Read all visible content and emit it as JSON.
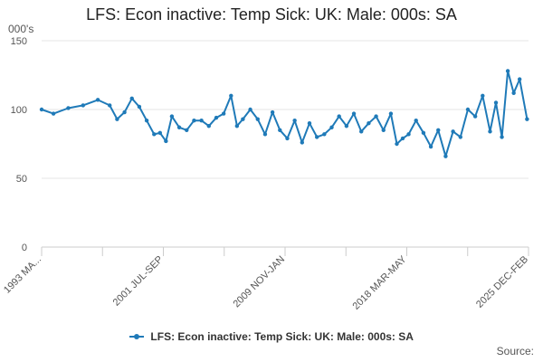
{
  "chart_data": {
    "type": "line",
    "title": "LFS: Econ inactive: Temp Sick: UK: Male: 000s: SA",
    "ylabel": "000's",
    "xlabel": "",
    "ylim": [
      0,
      150
    ],
    "yticks": [
      0,
      50,
      100,
      150
    ],
    "grid": true,
    "legend_position": "bottom",
    "x_tick_labels": [
      "1993 MA...",
      "2001 JUL-SEP",
      "2009 NOV-JAN",
      "2018 MAR-MAY",
      "2025 DEC-FEB"
    ],
    "x_range_years": [
      1993.2,
      2026.1
    ],
    "series": [
      {
        "name": "LFS: Econ inactive: Temp Sick: UK: Male: 000s: SA",
        "color": "#1f7ab8",
        "x": [
          1993.2,
          1994.0,
          1995.0,
          1996.0,
          1997.0,
          1997.8,
          1998.3,
          1998.8,
          1999.3,
          1999.8,
          2000.3,
          2000.8,
          2001.2,
          2001.6,
          2002.0,
          2002.5,
          2003.0,
          2003.5,
          2004.0,
          2004.5,
          2005.0,
          2005.5,
          2006.0,
          2006.4,
          2006.8,
          2007.3,
          2007.8,
          2008.3,
          2008.8,
          2009.3,
          2009.8,
          2010.3,
          2010.8,
          2011.3,
          2011.8,
          2012.3,
          2012.8,
          2013.3,
          2013.8,
          2014.3,
          2014.8,
          2015.3,
          2015.8,
          2016.3,
          2016.8,
          2017.2,
          2017.6,
          2018.0,
          2018.5,
          2019.0,
          2019.5,
          2020.0,
          2020.5,
          2021.0,
          2021.5,
          2022.0,
          2022.5,
          2023.0,
          2023.5,
          2023.9,
          2024.3,
          2024.7,
          2025.1,
          2025.5,
          2026.0
        ],
        "values": [
          100,
          97,
          101,
          103,
          107,
          103,
          93,
          98,
          108,
          102,
          92,
          82,
          83,
          77,
          95,
          87,
          85,
          92,
          92,
          88,
          94,
          97,
          110,
          88,
          93,
          100,
          93,
          82,
          98,
          85,
          79,
          92,
          76,
          90,
          80,
          82,
          87,
          95,
          88,
          97,
          84,
          90,
          95,
          85,
          97,
          75,
          79,
          82,
          92,
          83,
          73,
          85,
          66,
          84,
          80,
          100,
          95,
          110,
          84,
          105,
          80,
          128,
          112,
          122,
          93
        ]
      }
    ]
  },
  "source_label": "Source:"
}
